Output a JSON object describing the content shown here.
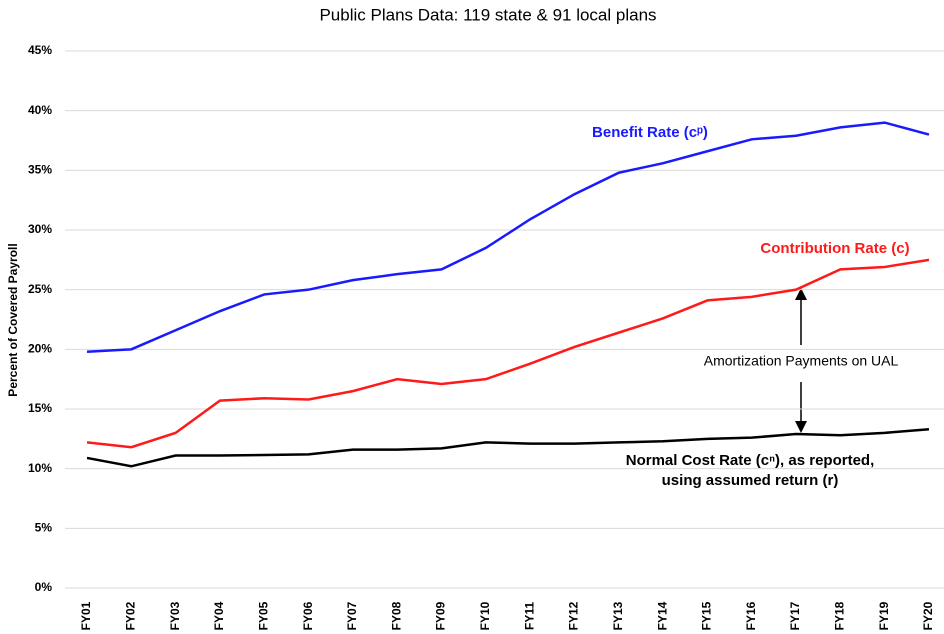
{
  "chart_data": {
    "type": "line",
    "title": "Public Plans Data: 119 state & 91 local plans",
    "y_label": "Percent of Covered Payroll",
    "categories": [
      "FY01",
      "FY02",
      "FY03",
      "FY04",
      "FY05",
      "FY06",
      "FY07",
      "FY08",
      "FY09",
      "FY10",
      "FY11",
      "FY12",
      "FY13",
      "FY14",
      "FY15",
      "FY16",
      "FY17",
      "FY18",
      "FY19",
      "FY20"
    ],
    "series": [
      {
        "name": "Benefit Rate (cᵖ)",
        "color": "#1a1aff",
        "values": [
          19.8,
          20.0,
          21.6,
          23.2,
          24.6,
          25.0,
          25.8,
          26.3,
          26.7,
          28.5,
          30.9,
          33.0,
          34.8,
          35.6,
          36.6,
          37.6,
          37.9,
          38.6,
          39.0,
          38.0
        ]
      },
      {
        "name": "Contribution Rate (c)",
        "color": "#ff1a1a",
        "values": [
          12.2,
          11.8,
          13.0,
          15.7,
          15.9,
          15.8,
          16.5,
          17.5,
          17.1,
          17.5,
          18.8,
          20.2,
          21.4,
          22.6,
          24.1,
          24.4,
          25.0,
          26.7,
          26.9,
          27.5
        ]
      },
      {
        "name": "Normal Cost Rate (cⁿ), as reported,",
        "color": "#000000",
        "values": [
          10.9,
          10.2,
          11.1,
          11.1,
          11.15,
          11.2,
          11.6,
          11.6,
          11.7,
          12.2,
          12.1,
          12.1,
          12.2,
          12.3,
          12.5,
          12.6,
          12.9,
          12.8,
          13.0,
          13.3
        ]
      }
    ],
    "annotations": [
      "using assumed return (r)",
      "Amortization Payments on UAL"
    ],
    "ylim": [
      0,
      45
    ],
    "yticks": [
      {
        "value": 0,
        "label": "0%"
      },
      {
        "value": 5,
        "label": "5%"
      },
      {
        "value": 10,
        "label": "10%"
      },
      {
        "value": 15,
        "label": "15%"
      },
      {
        "value": 20,
        "label": "20%"
      },
      {
        "value": 25,
        "label": "25%"
      },
      {
        "value": 30,
        "label": "30%"
      },
      {
        "value": 35,
        "label": "35%"
      },
      {
        "value": 40,
        "label": "40%"
      },
      {
        "value": 45,
        "label": "45%"
      }
    ],
    "grid": true
  }
}
